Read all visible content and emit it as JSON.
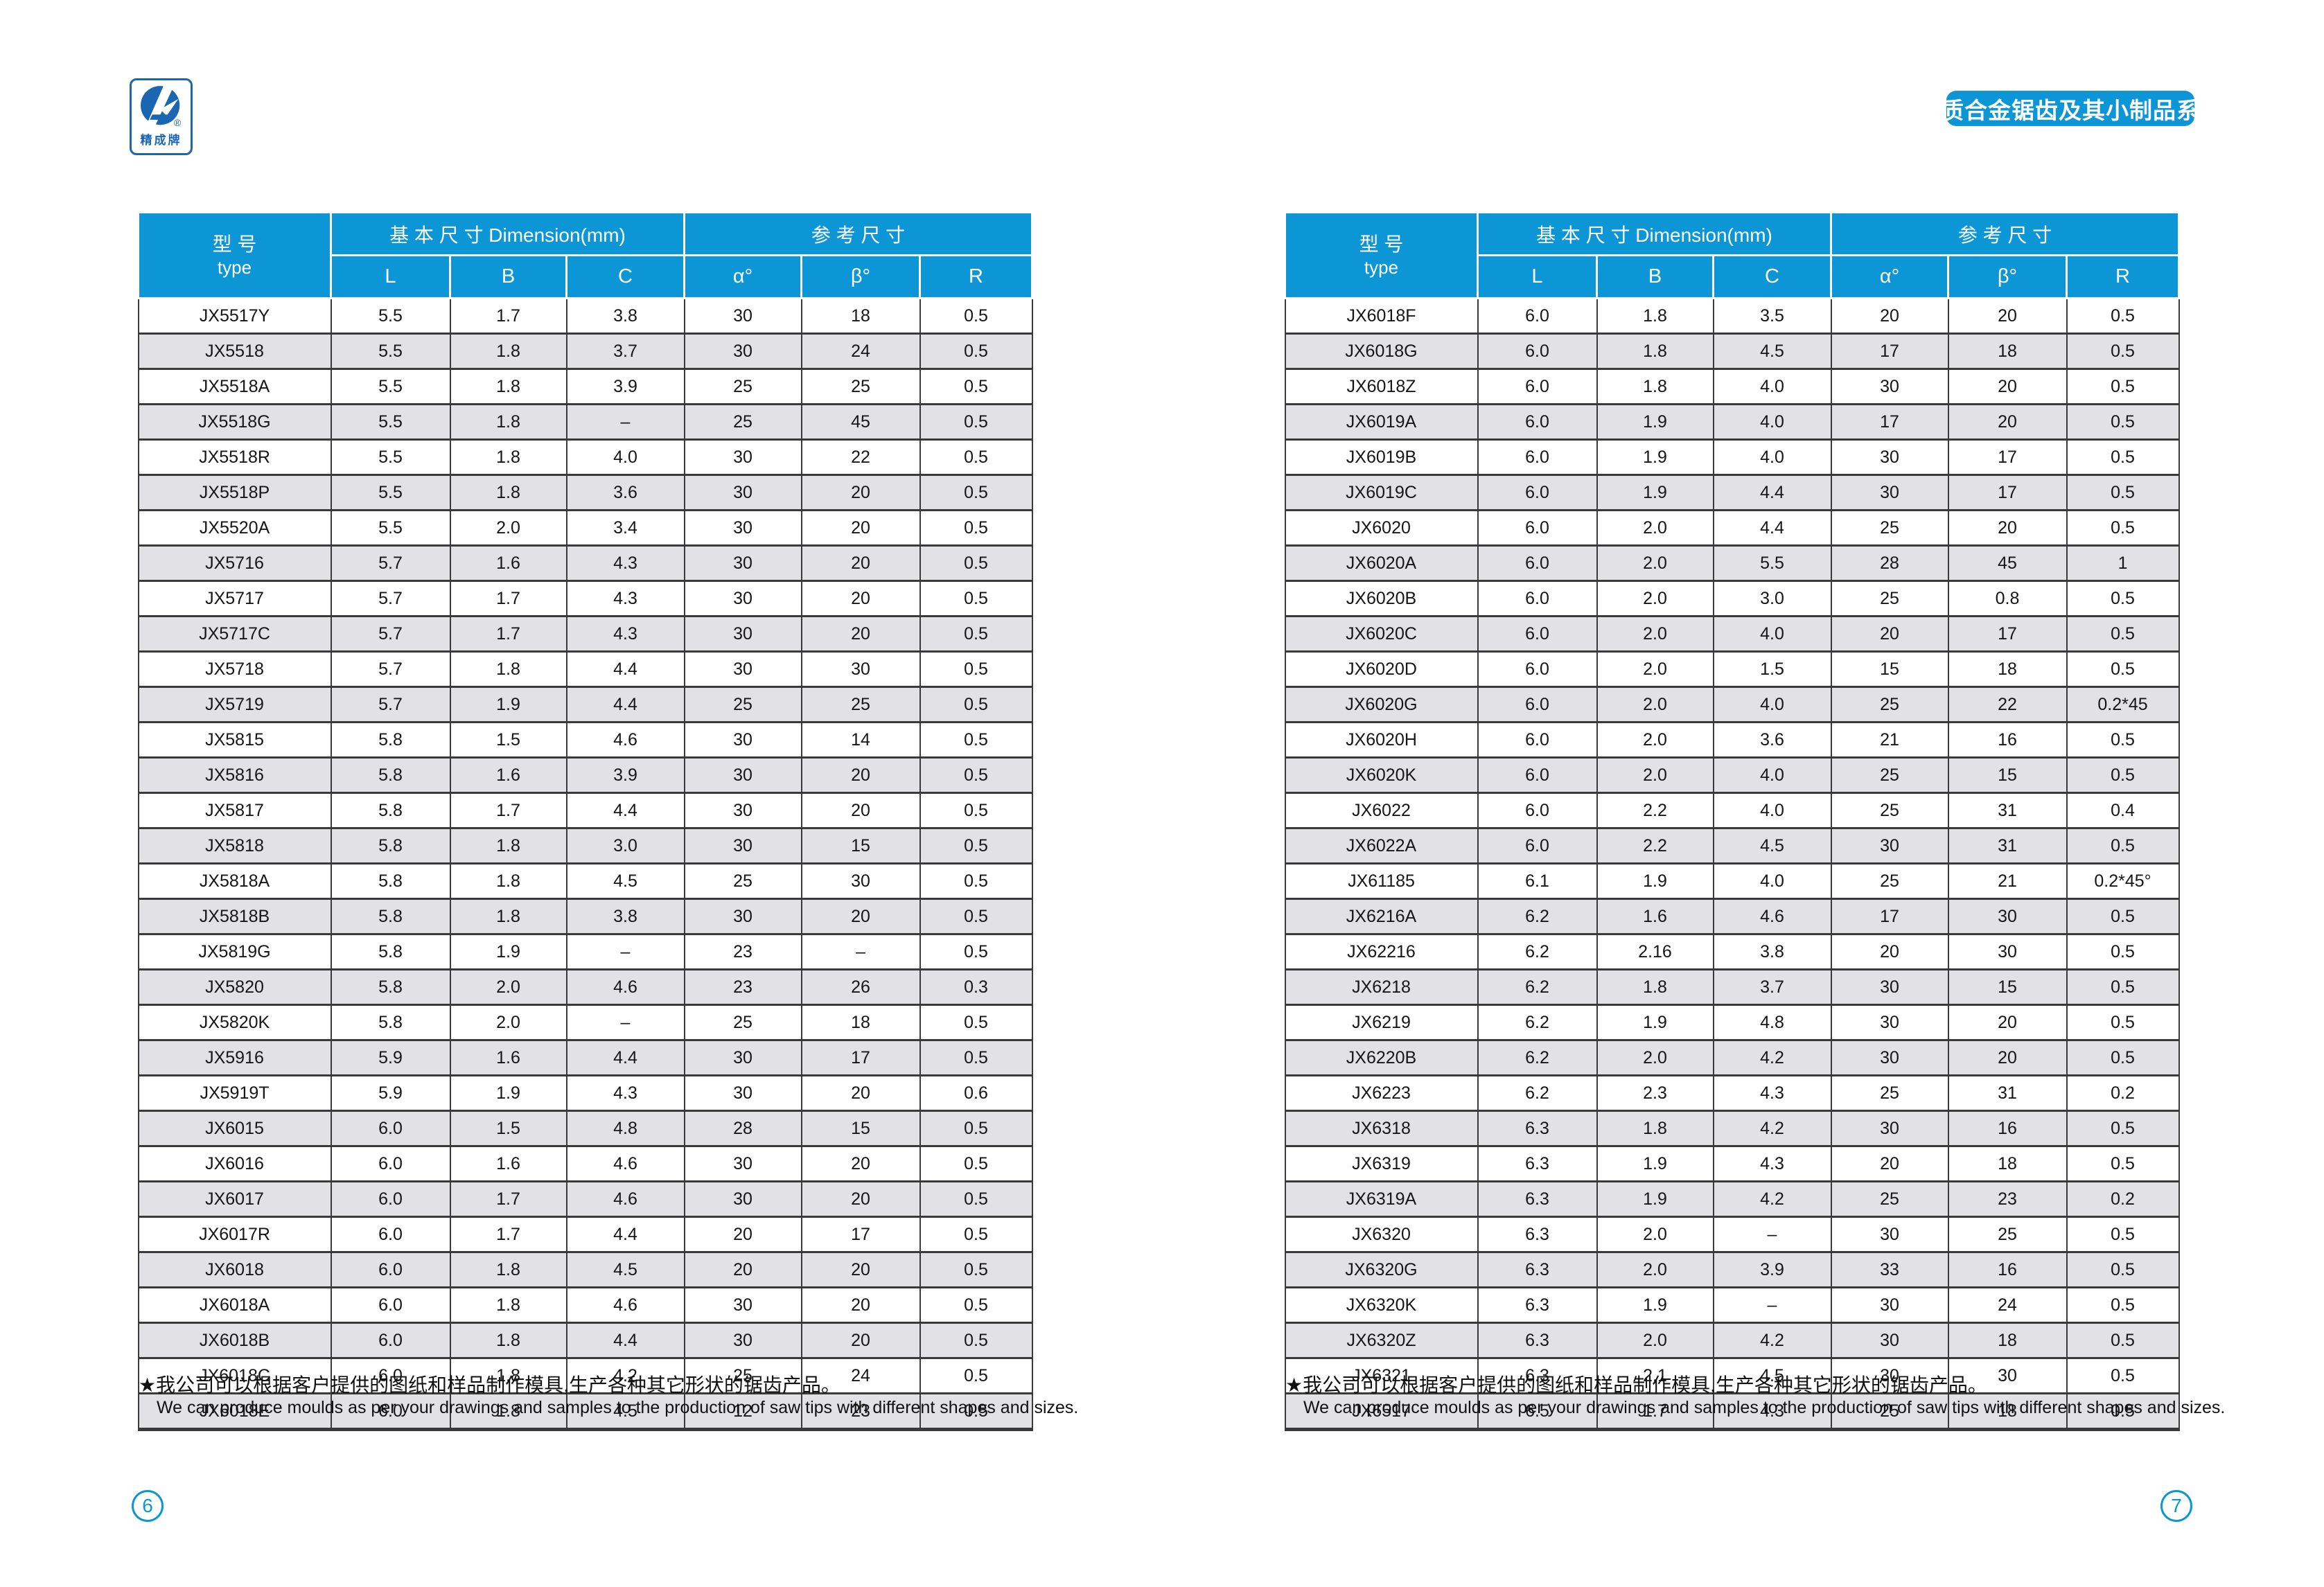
{
  "page": {
    "banner": "硬质合金锯齿及其小制品系列",
    "logo": {
      "brand_text": "精成牌",
      "registered_mark": "®"
    },
    "page_number_left": "6",
    "page_number_right": "7"
  },
  "colors": {
    "accent_blue": "#0c96d5",
    "logo_blue": "#1b66b3",
    "row_gray": "#e2e2e4"
  },
  "table_header": {
    "type_cn": "型  号",
    "type_en": "type",
    "basic_dim": "基 本 尺 寸 Dimension(mm)",
    "ref_dim": "参  考  尺  寸",
    "sub": [
      "L",
      "B",
      "C",
      "α°",
      "β°",
      "R"
    ]
  },
  "footnote": {
    "cn": "★我公司可以根据客户提供的图纸和样品制作模具,生产各种其它形状的锯齿产品。",
    "en": "We can produce moulds as per your drawings and samples to the production of saw tips with different shapes and sizes."
  },
  "left_table": {
    "rows": [
      [
        "JX5517Y",
        "5.5",
        "1.7",
        "3.8",
        "30",
        "18",
        "0.5"
      ],
      [
        "JX5518",
        "5.5",
        "1.8",
        "3.7",
        "30",
        "24",
        "0.5"
      ],
      [
        "JX5518A",
        "5.5",
        "1.8",
        "3.9",
        "25",
        "25",
        "0.5"
      ],
      [
        "JX5518G",
        "5.5",
        "1.8",
        "–",
        "25",
        "45",
        "0.5"
      ],
      [
        "JX5518R",
        "5.5",
        "1.8",
        "4.0",
        "30",
        "22",
        "0.5"
      ],
      [
        "JX5518P",
        "5.5",
        "1.8",
        "3.6",
        "30",
        "20",
        "0.5"
      ],
      [
        "JX5520A",
        "5.5",
        "2.0",
        "3.4",
        "30",
        "20",
        "0.5"
      ],
      [
        "JX5716",
        "5.7",
        "1.6",
        "4.3",
        "30",
        "20",
        "0.5"
      ],
      [
        "JX5717",
        "5.7",
        "1.7",
        "4.3",
        "30",
        "20",
        "0.5"
      ],
      [
        "JX5717C",
        "5.7",
        "1.7",
        "4.3",
        "30",
        "20",
        "0.5"
      ],
      [
        "JX5718",
        "5.7",
        "1.8",
        "4.4",
        "30",
        "30",
        "0.5"
      ],
      [
        "JX5719",
        "5.7",
        "1.9",
        "4.4",
        "25",
        "25",
        "0.5"
      ],
      [
        "JX5815",
        "5.8",
        "1.5",
        "4.6",
        "30",
        "14",
        "0.5"
      ],
      [
        "JX5816",
        "5.8",
        "1.6",
        "3.9",
        "30",
        "20",
        "0.5"
      ],
      [
        "JX5817",
        "5.8",
        "1.7",
        "4.4",
        "30",
        "20",
        "0.5"
      ],
      [
        "JX5818",
        "5.8",
        "1.8",
        "3.0",
        "30",
        "15",
        "0.5"
      ],
      [
        "JX5818A",
        "5.8",
        "1.8",
        "4.5",
        "25",
        "30",
        "0.5"
      ],
      [
        "JX5818B",
        "5.8",
        "1.8",
        "3.8",
        "30",
        "20",
        "0.5"
      ],
      [
        "JX5819G",
        "5.8",
        "1.9",
        "–",
        "23",
        "–",
        "0.5"
      ],
      [
        "JX5820",
        "5.8",
        "2.0",
        "4.6",
        "23",
        "26",
        "0.3"
      ],
      [
        "JX5820K",
        "5.8",
        "2.0",
        "–",
        "25",
        "18",
        "0.5"
      ],
      [
        "JX5916",
        "5.9",
        "1.6",
        "4.4",
        "30",
        "17",
        "0.5"
      ],
      [
        "JX5919T",
        "5.9",
        "1.9",
        "4.3",
        "30",
        "20",
        "0.6"
      ],
      [
        "JX6015",
        "6.0",
        "1.5",
        "4.8",
        "28",
        "15",
        "0.5"
      ],
      [
        "JX6016",
        "6.0",
        "1.6",
        "4.6",
        "30",
        "20",
        "0.5"
      ],
      [
        "JX6017",
        "6.0",
        "1.7",
        "4.6",
        "30",
        "20",
        "0.5"
      ],
      [
        "JX6017R",
        "6.0",
        "1.7",
        "4.4",
        "20",
        "17",
        "0.5"
      ],
      [
        "JX6018",
        "6.0",
        "1.8",
        "4.5",
        "20",
        "20",
        "0.5"
      ],
      [
        "JX6018A",
        "6.0",
        "1.8",
        "4.6",
        "30",
        "20",
        "0.5"
      ],
      [
        "JX6018B",
        "6.0",
        "1.8",
        "4.4",
        "30",
        "20",
        "0.5"
      ],
      [
        "JX6018C",
        "6.0",
        "1.8",
        "4.2",
        "25",
        "24",
        "0.5"
      ],
      [
        "JX6018E",
        "6.0",
        "1.8",
        "4.5",
        "12",
        "23",
        "0.5"
      ]
    ]
  },
  "right_table": {
    "rows": [
      [
        "JX6018F",
        "6.0",
        "1.8",
        "3.5",
        "20",
        "20",
        "0.5"
      ],
      [
        "JX6018G",
        "6.0",
        "1.8",
        "4.5",
        "17",
        "18",
        "0.5"
      ],
      [
        "JX6018Z",
        "6.0",
        "1.8",
        "4.0",
        "30",
        "20",
        "0.5"
      ],
      [
        "JX6019A",
        "6.0",
        "1.9",
        "4.0",
        "17",
        "20",
        "0.5"
      ],
      [
        "JX6019B",
        "6.0",
        "1.9",
        "4.0",
        "30",
        "17",
        "0.5"
      ],
      [
        "JX6019C",
        "6.0",
        "1.9",
        "4.4",
        "30",
        "17",
        "0.5"
      ],
      [
        "JX6020",
        "6.0",
        "2.0",
        "4.4",
        "25",
        "20",
        "0.5"
      ],
      [
        "JX6020A",
        "6.0",
        "2.0",
        "5.5",
        "28",
        "45",
        "1"
      ],
      [
        "JX6020B",
        "6.0",
        "2.0",
        "3.0",
        "25",
        "0.8",
        "0.5"
      ],
      [
        "JX6020C",
        "6.0",
        "2.0",
        "4.0",
        "20",
        "17",
        "0.5"
      ],
      [
        "JX6020D",
        "6.0",
        "2.0",
        "1.5",
        "15",
        "18",
        "0.5"
      ],
      [
        "JX6020G",
        "6.0",
        "2.0",
        "4.0",
        "25",
        "22",
        "0.2*45"
      ],
      [
        "JX6020H",
        "6.0",
        "2.0",
        "3.6",
        "21",
        "16",
        "0.5"
      ],
      [
        "JX6020K",
        "6.0",
        "2.0",
        "4.0",
        "25",
        "15",
        "0.5"
      ],
      [
        "JX6022",
        "6.0",
        "2.2",
        "4.0",
        "25",
        "31",
        "0.4"
      ],
      [
        "JX6022A",
        "6.0",
        "2.2",
        "4.5",
        "30",
        "31",
        "0.5"
      ],
      [
        "JX61185",
        "6.1",
        "1.9",
        "4.0",
        "25",
        "21",
        "0.2*45°"
      ],
      [
        "JX6216A",
        "6.2",
        "1.6",
        "4.6",
        "17",
        "30",
        "0.5"
      ],
      [
        "JX62216",
        "6.2",
        "2.16",
        "3.8",
        "20",
        "30",
        "0.5"
      ],
      [
        "JX6218",
        "6.2",
        "1.8",
        "3.7",
        "30",
        "15",
        "0.5"
      ],
      [
        "JX6219",
        "6.2",
        "1.9",
        "4.8",
        "30",
        "20",
        "0.5"
      ],
      [
        "JX6220B",
        "6.2",
        "2.0",
        "4.2",
        "30",
        "20",
        "0.5"
      ],
      [
        "JX6223",
        "6.2",
        "2.3",
        "4.3",
        "25",
        "31",
        "0.2"
      ],
      [
        "JX6318",
        "6.3",
        "1.8",
        "4.2",
        "30",
        "16",
        "0.5"
      ],
      [
        "JX6319",
        "6.3",
        "1.9",
        "4.3",
        "20",
        "18",
        "0.5"
      ],
      [
        "JX6319A",
        "6.3",
        "1.9",
        "4.2",
        "25",
        "23",
        "0.2"
      ],
      [
        "JX6320",
        "6.3",
        "2.0",
        "–",
        "30",
        "25",
        "0.5"
      ],
      [
        "JX6320G",
        "6.3",
        "2.0",
        "3.9",
        "33",
        "16",
        "0.5"
      ],
      [
        "JX6320K",
        "6.3",
        "1.9",
        "–",
        "30",
        "24",
        "0.5"
      ],
      [
        "JX6320Z",
        "6.3",
        "2.0",
        "4.2",
        "30",
        "18",
        "0.5"
      ],
      [
        "JX6321",
        "6.3",
        "2.1",
        "4.5",
        "30",
        "30",
        "0.5"
      ],
      [
        "JX6517",
        "6.5",
        "1.7",
        "4.3",
        "25",
        "18",
        "0.5"
      ]
    ]
  }
}
